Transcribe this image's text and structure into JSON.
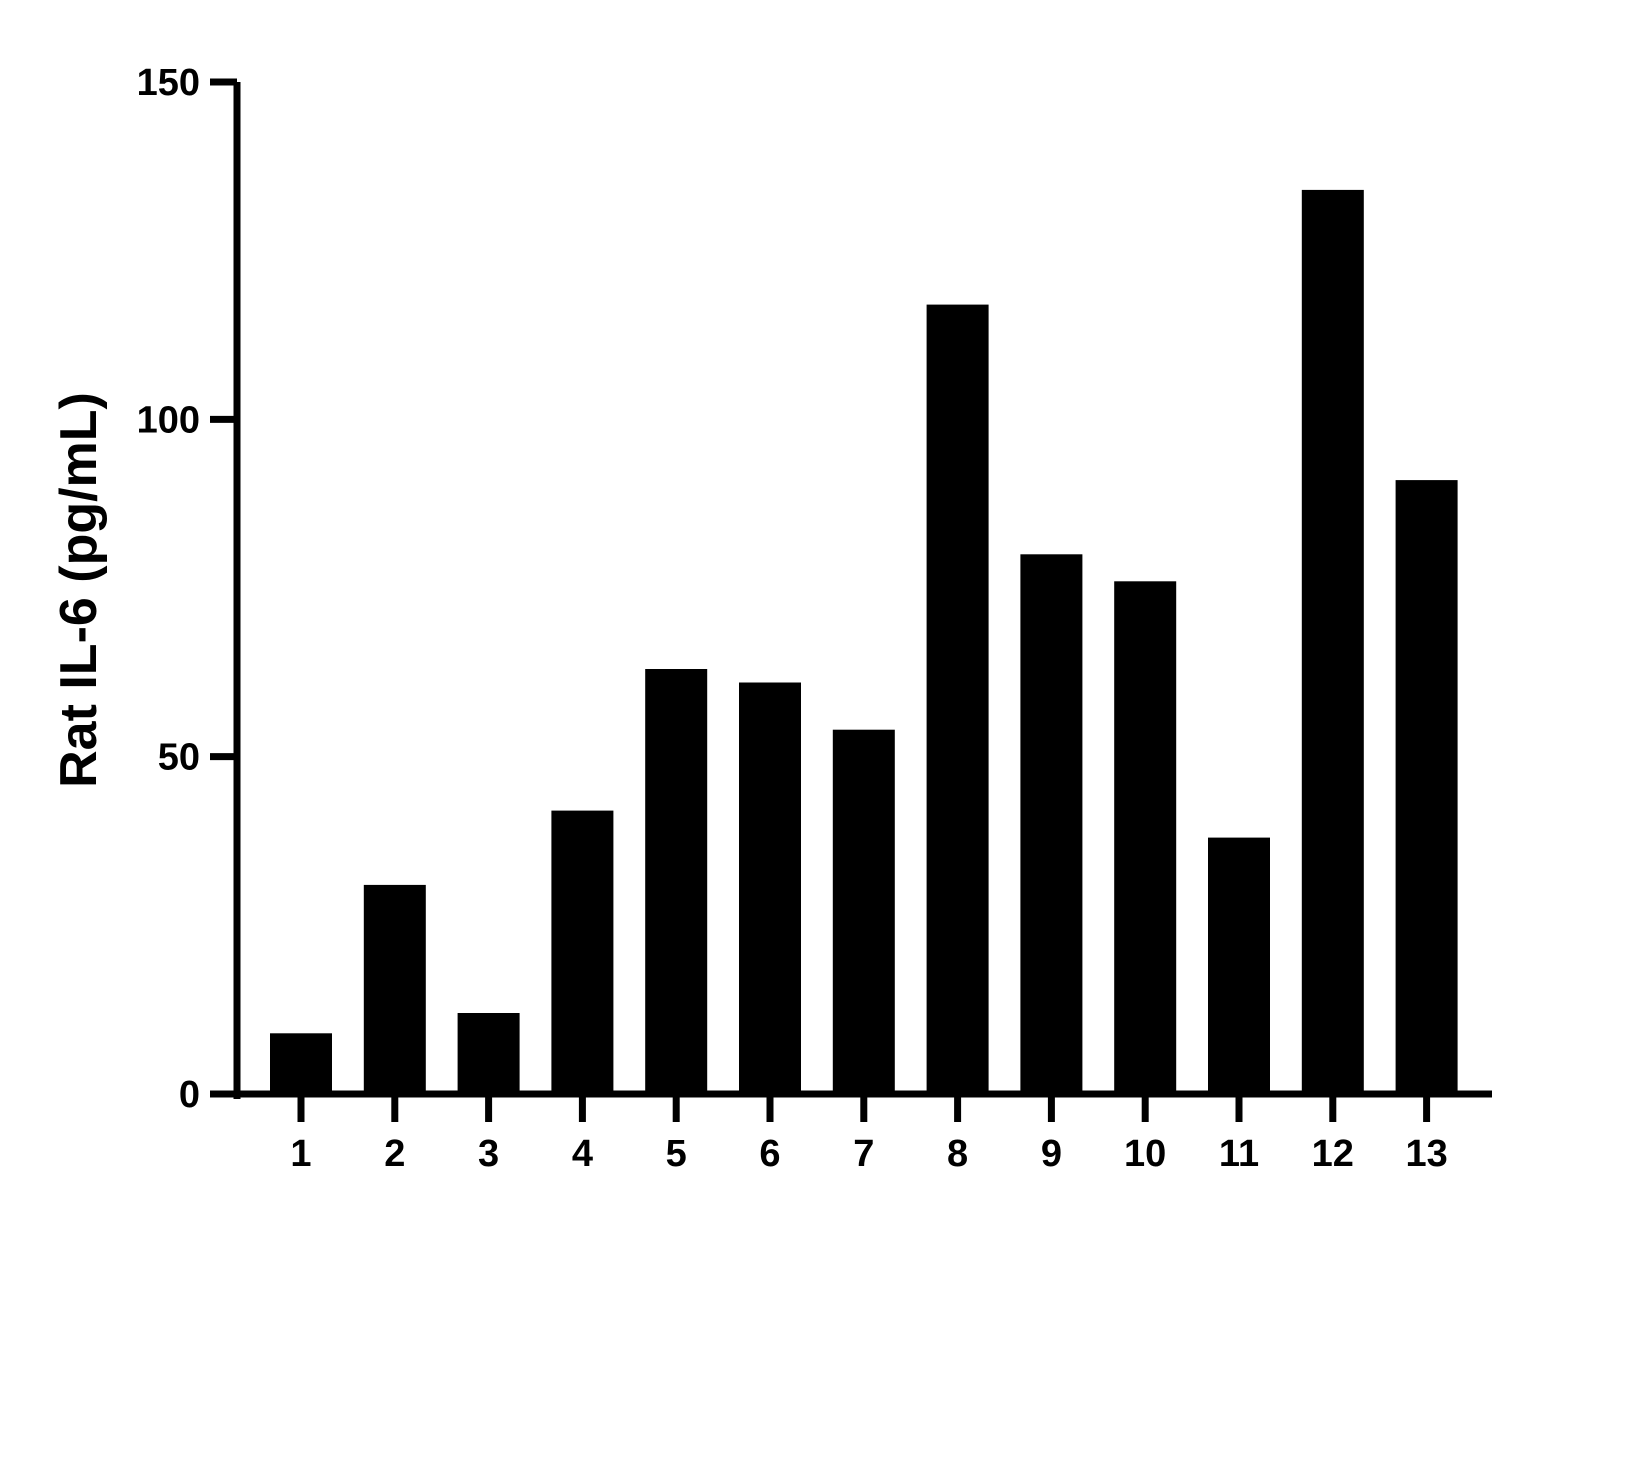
{
  "chart_data": {
    "type": "bar",
    "title": "",
    "xlabel": "",
    "ylabel": "Rat IL-6 (pg/mL)",
    "categories": [
      "1",
      "2",
      "3",
      "4",
      "5",
      "6",
      "7",
      "8",
      "9",
      "10",
      "11",
      "12",
      "13"
    ],
    "values": [
      9,
      31,
      12,
      42,
      63,
      61,
      54,
      117,
      80,
      76,
      38,
      134,
      91
    ],
    "ylim": [
      0,
      150
    ],
    "yticks": [
      "0",
      "50",
      "100",
      "150"
    ],
    "grid": false,
    "legend": "none",
    "bar_color": "#000000",
    "axis_color": "#000000"
  }
}
